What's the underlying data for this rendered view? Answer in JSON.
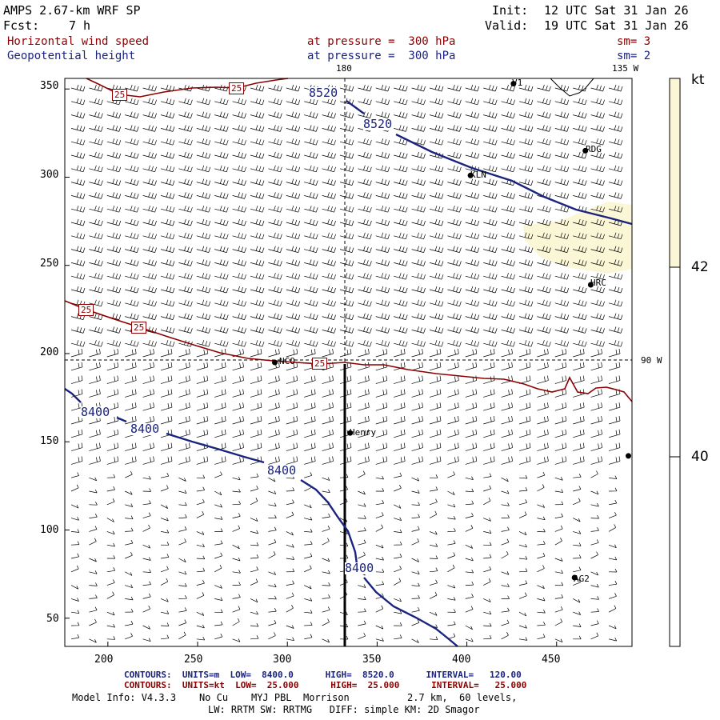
{
  "header": {
    "model_title": "AMPS 2.67-km WRF SP",
    "forecast_label": "Fcst:",
    "forecast_hours": "7 h",
    "init_label": "Init:",
    "init_time": "12 UTC Sat 31 Jan 26",
    "valid_label": "Valid:",
    "valid_time": "19 UTC Sat 31 Jan 26",
    "field1_name": "Horizontal wind speed",
    "field1_level": "at pressure =  300 hPa",
    "field1_smoothing": "sm= 3",
    "field2_name": "Geopotential height",
    "field2_level": "at pressure =  300 hPa",
    "field2_smoothing": "sm= 2"
  },
  "axes": {
    "x_ticks": [
      "200",
      "250",
      "300",
      "350",
      "400",
      "450"
    ],
    "y_ticks": [
      "350",
      "300",
      "250",
      "200",
      "150",
      "100",
      "50"
    ],
    "x_range": [
      176,
      492
    ],
    "y_range": [
      34,
      356
    ]
  },
  "map_labels": {
    "meridian_180": "180",
    "meridian_135w": "135 W",
    "parallel_90w": "90 W"
  },
  "stations": [
    {
      "name": "RDG",
      "x": 466,
      "y": 315
    },
    {
      "name": "KLN",
      "x": 402,
      "y": 301
    },
    {
      "name": "HRC",
      "x": 469,
      "y": 239
    },
    {
      "name": "NCO",
      "x": 293,
      "y": 195
    },
    {
      "name": "Henry",
      "x": 335,
      "y": 155
    },
    {
      "name": "AG2",
      "x": 460,
      "y": 73
    },
    {
      "name": "V1",
      "x": 426,
      "y": 353
    },
    {
      "name": "",
      "x": 490,
      "y": 142
    }
  ],
  "contour_labels": {
    "height_8520_a": "8520",
    "height_8520_b": "8520",
    "height_8400_a": "8400",
    "height_8400_b": "8400",
    "height_8400_c": "8400",
    "height_8400_d": "8400",
    "wind_25_a": "25",
    "wind_25_b": "25",
    "wind_25_c": "25",
    "wind_25_d": "25",
    "wind_25_e": "25"
  },
  "colorbar": {
    "unit": "kt",
    "levels": [
      "42",
      "40"
    ],
    "fill_color": "#fbf6d5"
  },
  "footer": {
    "contour1": "CONTOURS:  UNITS=m  LOW=  8400.0      HIGH=  8520.0      INTERVAL=   120.00",
    "contour2": "CONTOURS:  UNITS=kt  LOW=  25.000      HIGH=  25.000      INTERVAL=   25.000",
    "model_info": "Model Info: V4.3.3    No Cu    MYJ PBL  Morrison          2.7 km,  60 levels,",
    "physics_info": "LW: RRTM SW: RRTMG   DIFF: simple KM: 2D Smagor"
  },
  "colors": {
    "height_contour": "#1a237e",
    "wind_contour": "#8b0000",
    "text": "#000000"
  }
}
